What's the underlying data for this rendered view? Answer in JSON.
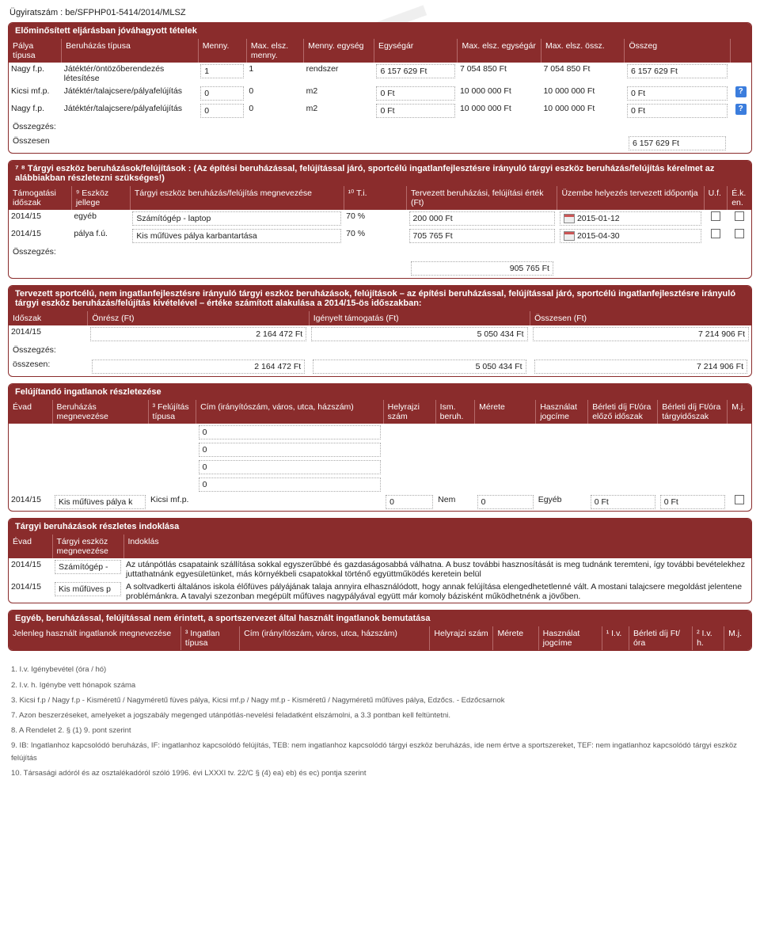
{
  "doc_number": "Ügyiratszám : be/SFPHP01-5414/2014/MLSZ",
  "watermark": "NAT",
  "panel1": {
    "title": "Előminősített eljárásban jóváhagyott tételek",
    "headers": [
      "Pálya típusa",
      "Beruházás típusa",
      "Menny.",
      "Max. elsz. menny.",
      "Menny. egység",
      "Egységár",
      "Max. elsz. egységár",
      "Max. elsz. össz.",
      "Összeg",
      ""
    ],
    "rows": [
      {
        "c0": "Nagy f.p.",
        "c1": "Játéktér/öntözőberendezés létesítése",
        "c2": "1",
        "c3": "1",
        "c4": "rendszer",
        "c5": "6 157 629 Ft",
        "c6": "7 054 850 Ft",
        "c7": "7 054 850 Ft",
        "c8": "6 157 629  Ft",
        "q": false
      },
      {
        "c0": "Kicsi mf.p.",
        "c1": "Játéktér/talajcsere/pályafelújítás",
        "c2": "0",
        "c3": "0",
        "c4": "m2",
        "c5": "0 Ft",
        "c6": "10 000 000 Ft",
        "c7": "10 000 000 Ft",
        "c8": "0  Ft",
        "q": true
      },
      {
        "c0": "Nagy f.p.",
        "c1": "Játéktér/talajcsere/pályafelújítás",
        "c2": "0",
        "c3": "0",
        "c4": "m2",
        "c5": "0 Ft",
        "c6": "10 000 000 Ft",
        "c7": "10 000 000 Ft",
        "c8": "0  Ft",
        "q": true
      }
    ],
    "sum_label": "Összegzés:",
    "total_label": "Összesen",
    "total_value": "6 157 629 Ft"
  },
  "panel2": {
    "title": "⁷ ⁸ Tárgyi eszköz beruházások/felújítások : (Az építési beruházással, felújítással járó, sportcélú ingatlanfejlesztésre irányuló tárgyi eszköz beruházás/felújítás kérelmet az alábbiakban részletezni szükséges!)",
    "headers": [
      "Támogatási időszak",
      "⁹ Eszköz jellege",
      "Tárgyi eszköz beruházás/felújítás megnevezése",
      "¹⁰ T.i.",
      "Tervezett beruházási, felújítási érték (Ft)",
      "Üzembe helyezés tervezett időpontja",
      "U.f.",
      "É.k. en."
    ],
    "rows": [
      {
        "c0": "2014/15",
        "c1": "egyéb",
        "c2": "Számítógép - laptop",
        "c3": "70 %",
        "c4": "200 000 Ft",
        "c5": "2015-01-12"
      },
      {
        "c0": "2014/15",
        "c1": "pálya f.ú.",
        "c2": "Kis műfüves pálya karbantartása",
        "c3": "70 %",
        "c4": "705 765 Ft",
        "c5": "2015-04-30"
      }
    ],
    "sum_label": "Összegzés:",
    "total_value": "905 765 Ft"
  },
  "panel3": {
    "title": "Tervezett sportcélú, nem ingatlanfejlesztésre irányuló tárgyi eszköz beruházások, felújítások – az építési beruházással, felújítással járó, sportcélú ingatlanfejlesztésre irányuló tárgyi eszköz beruházás/felújítás kivételével – értéke számított alakulása a 2014/15-ös időszakban:",
    "headers": [
      "Időszak",
      "Önrész (Ft)",
      "Igényelt támogatás (Ft)",
      "Összesen (Ft)"
    ],
    "rows": [
      {
        "c0": "2014/15",
        "c1": "2 164 472 Ft",
        "c2": "5 050 434 Ft",
        "c3": "7 214 906 Ft"
      }
    ],
    "sum_label": "Összegzés:",
    "total_label": "összesen:",
    "totals": {
      "c1": "2 164 472 Ft",
      "c2": "5 050 434 Ft",
      "c3": "7 214 906 Ft"
    }
  },
  "panel4": {
    "title": "Felújítandó ingatlanok részletezése",
    "headers": [
      "Évad",
      "Beruházás megnevezése",
      "³ Felújítás típusa",
      "Cím (irányítószám, város, utca, házszám)",
      "Helyrajzi szám",
      "Ism. beruh.",
      "Mérete",
      "Használat jogcíme",
      "Bérleti díj Ft/óra előző időszak",
      "Bérleti díj Ft/óra tárgyidőszak",
      "M.j."
    ],
    "addr_lines": [
      "0",
      "0",
      "0",
      "0"
    ],
    "row": {
      "c0": "2014/15",
      "c1": "Kis műfüves pálya k",
      "c2": "Kicsi mf.p.",
      "c4": "0",
      "c5": "Nem",
      "c6": "0",
      "c7": "Egyéb",
      "c8": "0 Ft",
      "c9": "0 Ft"
    }
  },
  "panel5": {
    "title": "Tárgyi beruházások részletes indoklása",
    "headers": [
      "Évad",
      "Tárgyi eszköz megnevezése",
      "Indoklás"
    ],
    "rows": [
      {
        "c0": "2014/15",
        "c1": "Számítógép -",
        "c2": "Az utánpótlás csapataink szállítása sokkal egyszerűbbé és gazdaságosabbá válhatna. A busz további hasznosítását is meg tudnánk teremteni, így további bevételekhez juttathatnánk egyesületünket, más környékbeli csapatokkal történő együttműködés keretein belül"
      },
      {
        "c0": "2014/15",
        "c1": "Kis műfüves p",
        "c2": "A soltvadkerti általános iskola élőfüves pályájának talaja annyira elhasználódott, hogy annak felújítása elengedhetetlenné vált. A mostani talajcsere megoldást jelentene problémánkra. A tavalyi szezonban megépült műfüves nagypályával együtt már komoly bázisként működhetnénk a jövőben."
      }
    ]
  },
  "panel6": {
    "title": "Egyéb, beruházással, felújítással nem érintett, a sportszervezet által használt ingatlanok bemutatása",
    "headers": [
      "Jelenleg használt ingatlanok megnevezése",
      "³ Ingatlan típusa",
      "Cím (irányítószám, város, utca, házszám)",
      "Helyrajzi szám",
      "Mérete",
      "Használat jogcíme",
      "¹ I.v.",
      "Bérleti díj Ft/óra",
      "² I.v. h.",
      "M.j."
    ]
  },
  "footnotes": [
    "1. I.v. Igénybevétel (óra / hó)",
    "2. I.v. h. Igénybe vett hónapok száma",
    "3. Kicsi f.p / Nagy f.p - Kisméretű / Nagyméretű füves pálya, Kicsi mf.p / Nagy mf.p - Kisméretű / Nagyméretű műfüves pálya, Edzőcs. - Edzőcsarnok",
    "7. Azon beszerzéseket, amelyeket a jogszabály megenged utánpótlás-nevelési feladatként elszámolni, a 3.3 pontban kell feltüntetni.",
    "8. A Rendelet 2. § (1) 9. pont szerint",
    "9. IB: Ingatlanhoz kapcsolódó beruházás, IF: ingatlanhoz kapcsolódó felújítás, TEB: nem ingatlanhoz kapcsolódó tárgyi eszköz beruházás, ide nem értve a sportszereket, TEF: nem ingatlanhoz kapcsolódó tárgyi eszköz felújítás",
    "10. Társasági adóról és az osztalékadóról szóló 1996. évi LXXXI tv. 22/C § (4) ea) eb) és ec) pontja szerint"
  ],
  "colors": {
    "header_bg": "#8a2c2c",
    "header_fg": "#ffffff",
    "border": "#8a2c2c",
    "dotted": "#aaaaaa"
  }
}
